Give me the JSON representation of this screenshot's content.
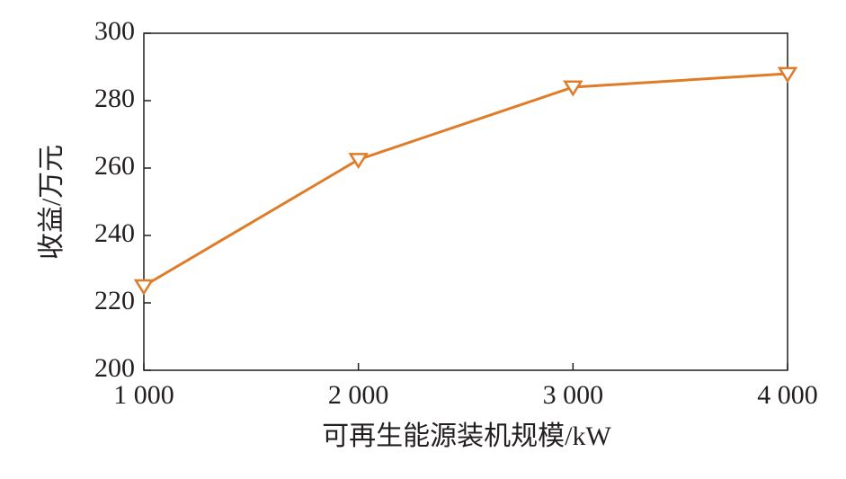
{
  "chart_data": {
    "type": "line",
    "x_label": "可再生能源装机规模/kW",
    "y_label": "收益/万元",
    "x": [
      1000,
      2000,
      3000,
      4000
    ],
    "series": [
      {
        "color": "#e07b28",
        "marker": "triangle-down",
        "values": [
          225,
          262.5,
          284,
          288
        ]
      }
    ],
    "xlim": [
      1000,
      4000
    ],
    "xticks": [
      {
        "value": 1000,
        "label": "1 000"
      },
      {
        "value": 2000,
        "label": "2 000"
      },
      {
        "value": 3000,
        "label": "3 000"
      },
      {
        "value": 4000,
        "label": "4 000"
      }
    ],
    "ylim": [
      200,
      300
    ],
    "yticks": [
      200,
      220,
      240,
      260,
      280,
      300
    ],
    "grid": false
  }
}
